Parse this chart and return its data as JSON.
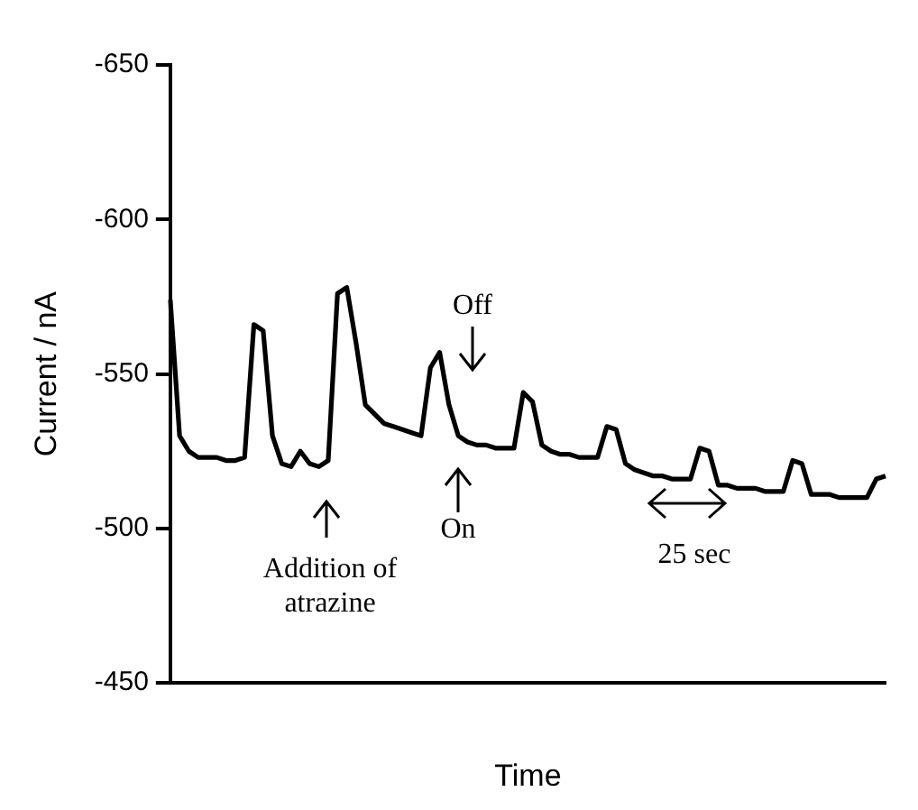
{
  "chart_data": {
    "type": "line",
    "xlabel": "Time",
    "ylabel": "Current / nA",
    "categories": [
      null,
      null,
      null,
      null,
      null,
      null,
      null,
      null,
      null,
      null,
      null,
      null,
      null,
      null,
      null,
      null,
      null,
      null,
      null,
      null,
      null,
      null,
      null,
      null,
      null,
      null,
      null,
      null,
      null,
      null,
      null,
      null,
      null,
      null,
      null,
      null,
      null,
      null,
      null,
      null,
      null,
      null,
      null,
      null,
      null,
      null,
      null,
      null,
      null,
      null,
      null,
      null,
      null,
      null,
      null,
      null,
      null,
      null,
      null,
      null,
      null,
      null,
      null,
      null,
      null,
      null,
      null,
      null,
      null,
      null,
      null,
      null,
      null,
      null,
      null,
      null,
      null,
      null
    ],
    "series": [
      {
        "color": "#000000",
        "values": [
          -574,
          -530,
          -525,
          -523,
          -523,
          -523,
          -522,
          -522,
          -523,
          -566,
          -564,
          -530,
          -521,
          -520,
          -525,
          -521,
          -520,
          -522,
          -576,
          -578,
          -560,
          -540,
          -537,
          -534,
          -533,
          -532,
          -531,
          -530,
          -552,
          -557,
          -540,
          -530,
          -528,
          -527,
          -527,
          -526,
          -526,
          -526,
          -544,
          -541,
          -527,
          -525,
          -524,
          -524,
          -523,
          -523,
          -523,
          -533,
          -532,
          -521,
          -519,
          -518,
          -517,
          -517,
          -516,
          -516,
          -516,
          -526,
          -525,
          -514,
          -514,
          -513,
          -513,
          -513,
          -512,
          -512,
          -512,
          -522,
          -521,
          -511,
          -511,
          -511,
          -510,
          -510,
          -510,
          -510,
          -516,
          -517
        ]
      }
    ],
    "ylim": [
      -450,
      -650
    ],
    "yticks": [
      -650,
      -600,
      -550,
      -500,
      -450
    ],
    "tick_labels": "y",
    "grid": false,
    "legend": false,
    "marker": "none",
    "line_style": "solid",
    "annotations": [
      "Off",
      "On",
      "Addition of atrazine",
      "25 sec"
    ]
  }
}
